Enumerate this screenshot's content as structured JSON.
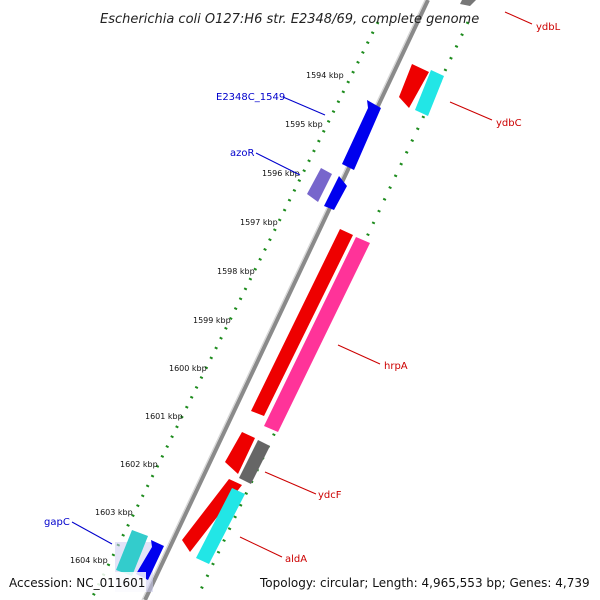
{
  "title": "Escherichia coli O127:H6 str. E2348/69, complete genome",
  "footer": {
    "accession": "Accession: NC_011601",
    "topology": "Topology: circular; Length: 4,965,553 bp; Genes: 4,739"
  },
  "kbp_labels": [
    "1594 kbp",
    "1595 kbp",
    "1596 kbp",
    "1597 kbp",
    "1598 kbp",
    "1599 kbp",
    "1600 kbp",
    "1601 kbp",
    "1602 kbp",
    "1603 kbp",
    "1604 kbp"
  ],
  "genes": {
    "ydbL": "ydbL",
    "ydbC": "ydbC",
    "hrpA": "hrpA",
    "ydcF": "ydcF",
    "aldA": "aldA",
    "E2348C_1549": "E2348C_1549",
    "azoR": "azoR",
    "gapC": "gapC"
  },
  "colors": {
    "backbone": "#8a8a8a",
    "tick": "#1e8c1e",
    "forward_label": "#cc0000",
    "reverse_label": "#0000cc",
    "red": "#ee0000",
    "pink": "#ff3399",
    "cyan": "#22e6e6",
    "gray": "#666666",
    "blue": "#0000ee",
    "purple": "#7766cc",
    "teal": "#33cccc"
  }
}
